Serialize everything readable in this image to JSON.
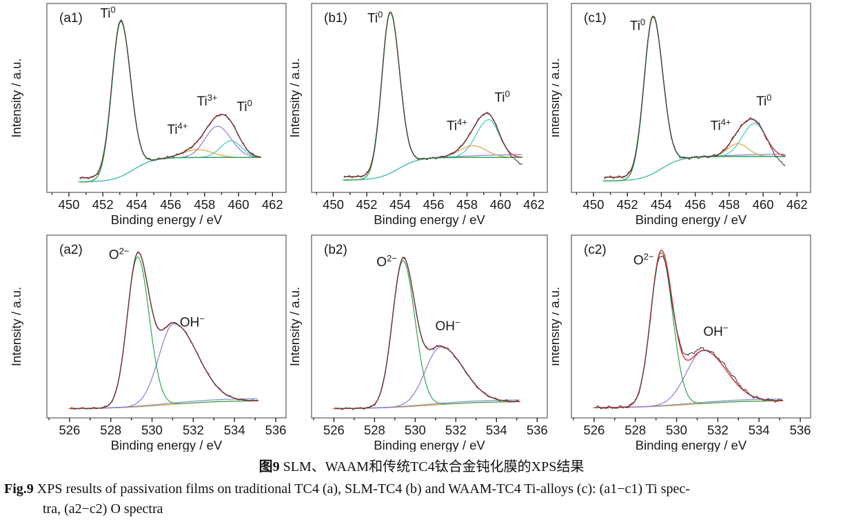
{
  "caption": {
    "zh_bold": "图9",
    "zh_text": " SLM、WAAM和传统TC4钛合金钝化膜的XPS结果",
    "en_bold": "Fig.9",
    "en_line1": " XPS results of passivation films on traditional TC4 (a), SLM-TC4 (b) and WAAM-TC4 Ti-alloys (c): (a1−c1) Ti spec-",
    "en_line2": "tra, (a2−c2) O spectra"
  },
  "colors": {
    "raw": "#414141",
    "envelope": "#e23535",
    "green": "#2fa252",
    "purple": "#8d7ad6",
    "cyan": "#41cabc",
    "orange": "#dfa03c",
    "blue": "#7c90cc",
    "border": "#5a5a5a",
    "text": "#1a1a1a"
  },
  "chart_data": [
    {
      "id": "a1",
      "type": "line",
      "corner_label": "(a1)",
      "xlabel": "Binding energy / eV",
      "ylabel": "Intensity / a.u.",
      "x_axis_range": [
        448.7,
        462.8
      ],
      "x_ticks": [
        450,
        452,
        454,
        456,
        458,
        460,
        462
      ],
      "data_x_range": [
        450.65,
        461.3
      ],
      "background": {
        "y_left": 0.055,
        "y_right": 0.185,
        "center": 453.8,
        "width": 0.6,
        "color_key": "cyan"
      },
      "left_floor": {
        "amp": 0.022,
        "center": 452.4,
        "width": 0.5
      },
      "peaks": [
        {
          "name": "Ti0 metal fit",
          "color_key": "green",
          "center": 453.05,
          "amp": 0.82,
          "sigma_l": 0.52,
          "sigma_r": 0.58,
          "above_envelope": true
        },
        {
          "name": "Ti4+ component",
          "color_key": "orange",
          "center": 457.6,
          "amp": 0.042,
          "sigma_l": 0.85,
          "sigma_r": 0.85
        },
        {
          "name": "Ti3+ component",
          "color_key": "purple",
          "center": 458.75,
          "amp": 0.165,
          "sigma_l": 0.72,
          "sigma_r": 0.8
        },
        {
          "name": "Ti0 satellite component",
          "color_key": "cyan",
          "center": 459.55,
          "amp": 0.088,
          "sigma_l": 0.62,
          "sigma_r": 0.62
        }
      ],
      "envelope_color_key": "envelope",
      "raw_color_key": "raw",
      "noise": {
        "amp": 0.007,
        "seed": 11
      },
      "annotations": [
        {
          "base": "Ti",
          "sup": "0",
          "x": 452.3,
          "yfrac": 0.925
        },
        {
          "base": "Ti",
          "sup": "4+",
          "x": 456.4,
          "yfrac": 0.31
        },
        {
          "base": "Ti",
          "sup": "3+",
          "x": 458.15,
          "yfrac": 0.46
        },
        {
          "base": "Ti",
          "sup": "0",
          "x": 460.35,
          "yfrac": 0.43
        }
      ]
    },
    {
      "id": "b1",
      "type": "line",
      "corner_label": "(b1)",
      "xlabel": "Binding energy / eV",
      "ylabel": "Intensity / a.u.",
      "x_axis_range": [
        448.7,
        462.8
      ],
      "x_ticks": [
        450,
        452,
        454,
        456,
        458,
        460,
        462
      ],
      "data_x_range": [
        450.65,
        461.3
      ],
      "background": {
        "y_left": 0.065,
        "y_right": 0.185,
        "center": 453.9,
        "width": 0.6,
        "color_key": "cyan"
      },
      "left_floor": {
        "amp": 0.018,
        "center": 452.6,
        "width": 0.5
      },
      "peaks": [
        {
          "name": "Ti0 metal fit",
          "color_key": "green",
          "center": 453.4,
          "amp": 0.85,
          "sigma_l": 0.5,
          "sigma_r": 0.56,
          "above_envelope": true
        },
        {
          "name": "weak component",
          "color_key": "purple",
          "flat": true,
          "amp": 0.015,
          "center": 458.0,
          "width": 1.0,
          "in_envelope": false
        },
        {
          "name": "Ti4+ component",
          "color_key": "orange",
          "center": 458.35,
          "amp": 0.062,
          "sigma_l": 0.8,
          "sigma_r": 0.8
        },
        {
          "name": "Ti0 satellite component",
          "color_key": "cyan",
          "center": 459.3,
          "amp": 0.2,
          "sigma_l": 0.75,
          "sigma_r": 0.62
        }
      ],
      "envelope_color_key": "envelope",
      "raw_color_key": "raw",
      "noise": {
        "amp": 0.007,
        "seed": 23
      },
      "raw_adjust": [
        {
          "center": 461.35,
          "amp": -0.035,
          "sigma": 0.45
        }
      ],
      "annotations": [
        {
          "base": "Ti",
          "sup": "0",
          "x": 452.5,
          "yfrac": 0.9
        },
        {
          "base": "Ti",
          "sup": "4+",
          "x": 457.4,
          "yfrac": 0.33
        },
        {
          "base": "Ti",
          "sup": "0",
          "x": 460.1,
          "yfrac": 0.48
        }
      ]
    },
    {
      "id": "c1",
      "type": "line",
      "corner_label": "(c1)",
      "xlabel": "Binding energy / eV",
      "ylabel": "Intensity / a.u.",
      "x_axis_range": [
        448.7,
        462.8
      ],
      "x_ticks": [
        450,
        452,
        454,
        456,
        458,
        460,
        462
      ],
      "data_x_range": [
        450.65,
        461.3
      ],
      "background": {
        "y_left": 0.06,
        "y_right": 0.19,
        "center": 454.0,
        "width": 0.6,
        "color_key": "cyan"
      },
      "left_floor": {
        "amp": 0.02,
        "center": 452.7,
        "width": 0.5
      },
      "peaks": [
        {
          "name": "Ti0 metal fit",
          "color_key": "green",
          "center": 453.5,
          "amp": 0.83,
          "sigma_l": 0.52,
          "sigma_r": 0.58,
          "above_envelope": true
        },
        {
          "name": "weak component",
          "color_key": "purple",
          "flat": true,
          "amp": 0.013,
          "center": 458.2,
          "width": 1.1,
          "in_envelope": false
        },
        {
          "name": "Ti4+ component",
          "color_key": "orange",
          "center": 458.5,
          "amp": 0.068,
          "sigma_l": 0.58,
          "sigma_r": 0.62
        },
        {
          "name": "Ti0 satellite component",
          "color_key": "cyan",
          "center": 459.5,
          "amp": 0.175,
          "sigma_l": 0.72,
          "sigma_r": 0.65
        }
      ],
      "envelope_color_key": "envelope",
      "raw_color_key": "raw",
      "noise": {
        "amp": 0.009,
        "seed": 37
      },
      "raw_adjust": [
        {
          "center": 461.3,
          "amp": -0.045,
          "sigma": 0.5
        }
      ],
      "annotations": [
        {
          "base": "Ti",
          "sup": "0",
          "x": 452.6,
          "yfrac": 0.86
        },
        {
          "base": "Ti",
          "sup": "4+",
          "x": 457.5,
          "yfrac": 0.33
        },
        {
          "base": "Ti",
          "sup": "0",
          "x": 460.05,
          "yfrac": 0.46
        }
      ]
    },
    {
      "id": "a2",
      "type": "line",
      "corner_label": "(a2)",
      "xlabel": "Binding energy / eV",
      "ylabel": "Intensity / a.u.",
      "x_axis_range": [
        524.9,
        536.5
      ],
      "x_ticks": [
        526,
        528,
        530,
        532,
        534,
        536
      ],
      "data_x_range": [
        526.05,
        535.15
      ],
      "background": {
        "y_left": 0.05,
        "y_right": 0.095,
        "center": 530.8,
        "width": 1.3,
        "color_key": "orange"
      },
      "peaks": [
        {
          "name": "background line",
          "color_key": "blue",
          "flat": true,
          "amp": 0.012,
          "center": 530.5,
          "width": 1.3,
          "in_envelope": false
        },
        {
          "name": "OH- component",
          "color_key": "purple",
          "center": 531.05,
          "amp": 0.44,
          "sigma_l": 0.72,
          "sigma_r": 1.15
        },
        {
          "name": "O2- component",
          "color_key": "green",
          "center": 529.3,
          "amp": 0.82,
          "sigma_l": 0.5,
          "sigma_r": 0.56
        }
      ],
      "envelope_color_key": "envelope",
      "raw_color_key": "raw",
      "noise": {
        "amp": 0.006,
        "seed": 51
      },
      "annotations": [
        {
          "base": "O",
          "sup": "2−",
          "x": 528.4,
          "yfrac": 0.87
        },
        {
          "base": "OH",
          "sup": "−",
          "x": 531.95,
          "yfrac": 0.5
        }
      ]
    },
    {
      "id": "b2",
      "type": "line",
      "corner_label": "(b2)",
      "xlabel": "Binding energy / eV",
      "ylabel": "Intensity / a.u.",
      "x_axis_range": [
        524.9,
        536.5
      ],
      "x_ticks": [
        526,
        528,
        530,
        532,
        534,
        536
      ],
      "data_x_range": [
        526.05,
        535.15
      ],
      "background": {
        "y_left": 0.05,
        "y_right": 0.09,
        "center": 530.8,
        "width": 1.3,
        "color_key": "orange"
      },
      "peaks": [
        {
          "name": "background line",
          "color_key": "blue",
          "flat": true,
          "amp": 0.01,
          "center": 530.5,
          "width": 1.3,
          "in_envelope": false
        },
        {
          "name": "OH- component",
          "color_key": "purple",
          "center": 531.25,
          "amp": 0.315,
          "sigma_l": 0.75,
          "sigma_r": 1.12
        },
        {
          "name": "O2- component",
          "color_key": "green",
          "center": 529.4,
          "amp": 0.8,
          "sigma_l": 0.52,
          "sigma_r": 0.58
        }
      ],
      "envelope_color_key": "envelope",
      "raw_color_key": "raw",
      "noise": {
        "amp": 0.007,
        "seed": 67
      },
      "annotations": [
        {
          "base": "O",
          "sup": "2−",
          "x": 528.6,
          "yfrac": 0.83
        },
        {
          "base": "OH",
          "sup": "−",
          "x": 531.6,
          "yfrac": 0.48
        }
      ]
    },
    {
      "id": "c2",
      "type": "line",
      "corner_label": "(c2)",
      "xlabel": "Binding energy / eV",
      "ylabel": "Intensity / a.u.",
      "x_axis_range": [
        524.9,
        536.5
      ],
      "x_ticks": [
        526,
        528,
        530,
        532,
        534,
        536
      ],
      "data_x_range": [
        526.05,
        535.15
      ],
      "background": {
        "y_left": 0.055,
        "y_right": 0.095,
        "center": 530.8,
        "width": 1.3,
        "color_key": "orange"
      },
      "peaks": [
        {
          "name": "background line",
          "color_key": "blue",
          "flat": true,
          "amp": 0.01,
          "center": 530.5,
          "width": 1.3,
          "in_envelope": false
        },
        {
          "name": "OH- component",
          "color_key": "purple",
          "center": 531.3,
          "amp": 0.29,
          "sigma_l": 0.82,
          "sigma_r": 1.1
        },
        {
          "name": "O2- component",
          "color_key": "green",
          "center": 529.25,
          "amp": 0.84,
          "sigma_l": 0.5,
          "sigma_r": 0.55
        }
      ],
      "envelope_color_key": "envelope",
      "raw_color_key": "raw",
      "noise": {
        "amp": 0.011,
        "seed": 83
      },
      "raw_adjust": [
        {
          "center": 529.45,
          "amp": -0.03,
          "sigma": 0.4
        },
        {
          "center": 530.55,
          "amp": 0.03,
          "sigma": 0.45
        },
        {
          "center": 532.6,
          "amp": 0.018,
          "sigma": 0.5
        }
      ],
      "annotations": [
        {
          "base": "O",
          "sup": "2−",
          "x": 528.4,
          "yfrac": 0.84
        },
        {
          "base": "OH",
          "sup": "−",
          "x": 531.9,
          "yfrac": 0.45
        }
      ]
    }
  ]
}
